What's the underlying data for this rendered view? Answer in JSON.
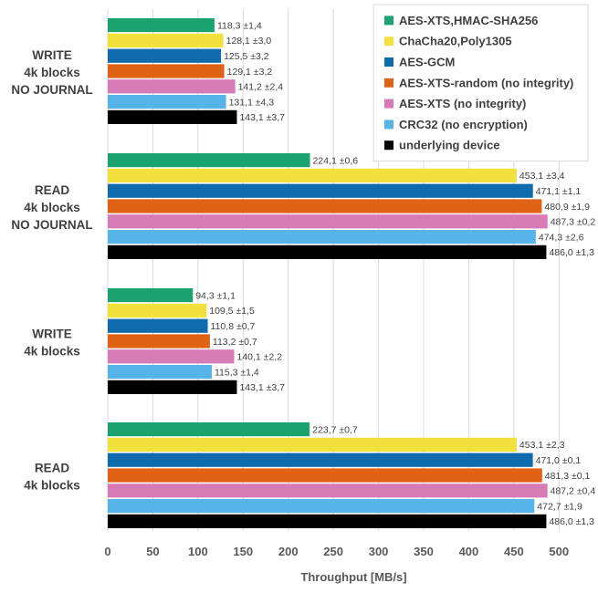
{
  "chart_data": {
    "type": "bar",
    "orientation": "horizontal",
    "title": "",
    "xlabel": "Throughput [MB/s]",
    "ylabel": "",
    "xlim": [
      0,
      525
    ],
    "xticks": [
      0,
      50,
      100,
      150,
      200,
      250,
      300,
      350,
      400,
      450,
      500
    ],
    "grid": "vertical",
    "legend_position": "top-right",
    "categories": [
      [
        "WRITE",
        "4k blocks",
        "NO JOURNAL"
      ],
      [
        "READ",
        "4k blocks",
        "NO JOURNAL"
      ],
      [
        "WRITE",
        "4k blocks"
      ],
      [
        "READ",
        "4k blocks"
      ]
    ],
    "series": [
      {
        "name": "AES-XTS,HMAC-SHA256",
        "color": "#1aa36e",
        "values": [
          118.3,
          224.1,
          94.3,
          223.7
        ],
        "labels": [
          "118,3 ±1,4",
          "224,1 ±0,6",
          "94,3 ±1,1",
          "223,7 ±0,7"
        ]
      },
      {
        "name": "ChaCha20,Poly1305",
        "color": "#f2e13c",
        "values": [
          128.1,
          453.1,
          109.5,
          453.1
        ],
        "labels": [
          "128,1 ±3,0",
          "453,1 ±3,4",
          "109,5 ±1,5",
          "453,1 ±2,3"
        ]
      },
      {
        "name": "AES-GCM",
        "color": "#0f6bab",
        "values": [
          125.5,
          471.1,
          110.8,
          471.0
        ],
        "labels": [
          "125,5 ±3,2",
          "471,1 ±1,1",
          "110,8 ±0,7",
          "471,0 ±0,1"
        ]
      },
      {
        "name": "AES-XTS-random (no integrity)",
        "color": "#e06215",
        "values": [
          129.1,
          480.9,
          113.2,
          481.3
        ],
        "labels": [
          "129,1 ±3,2",
          "480,9 ±1,9",
          "113,2 ±0,7",
          "481,3 ±0,1"
        ]
      },
      {
        "name": "AES-XTS (no integrity)",
        "color": "#d67bb6",
        "values": [
          141.2,
          487.3,
          140.1,
          487.2
        ],
        "labels": [
          "141,2 ±2,4",
          "487,3 ±0,2",
          "140,1 ±2,2",
          "487,2 ±0,4"
        ]
      },
      {
        "name": "CRC32 (no encryption)",
        "color": "#56b4e9",
        "values": [
          131.1,
          474.3,
          115.3,
          472.7
        ],
        "labels": [
          "131,1 ±4,3",
          "474,3 ±2,6",
          "115,3 ±1,4",
          "472,7 ±1,9"
        ]
      },
      {
        "name": "underlying device",
        "color": "#000000",
        "values": [
          143.1,
          486.0,
          143.1,
          486.0
        ],
        "labels": [
          "143,1 ±3,7",
          "486,0 ±1,3",
          "143,1 ±3,7",
          "486,0 ±1,3"
        ]
      }
    ]
  }
}
